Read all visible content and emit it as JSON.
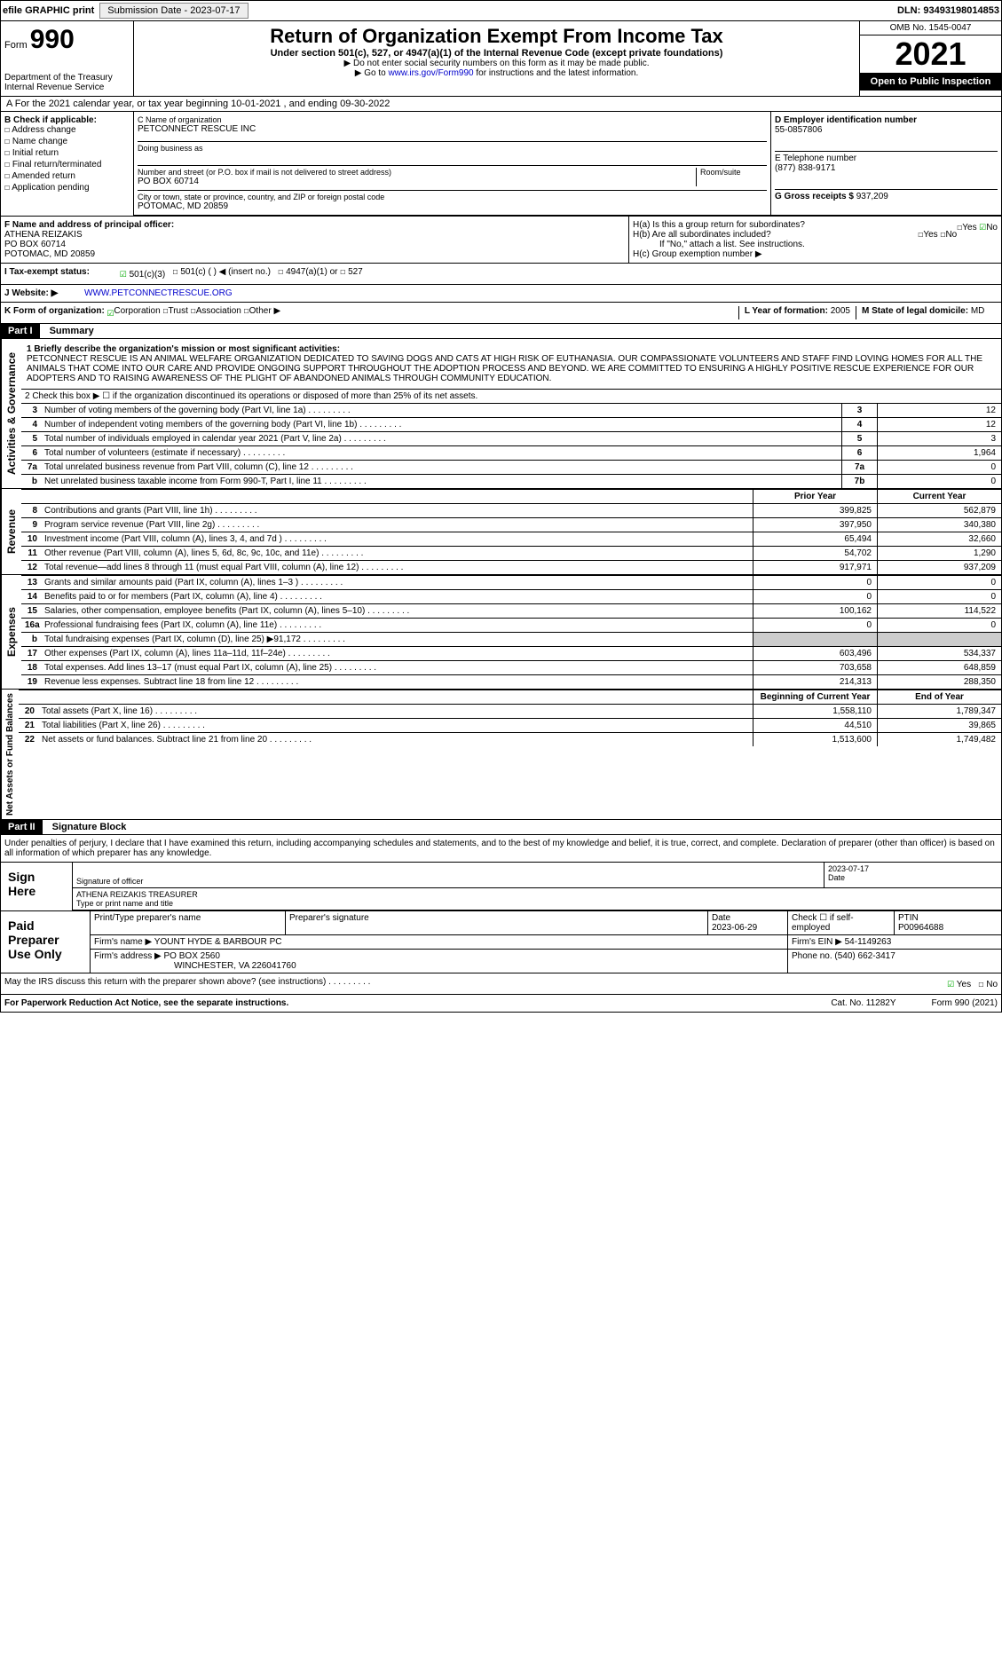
{
  "topbar": {
    "efile": "efile GRAPHIC print",
    "submission": "Submission Date - 2023-07-17",
    "dln": "DLN: 93493198014853"
  },
  "header": {
    "form_prefix": "Form",
    "form_num": "990",
    "dept": "Department of the Treasury Internal Revenue Service",
    "title": "Return of Organization Exempt From Income Tax",
    "sub": "Under section 501(c), 527, or 4947(a)(1) of the Internal Revenue Code (except private foundations)",
    "note1": "▶ Do not enter social security numbers on this form as it may be made public.",
    "note2": "▶ Go to ",
    "note2_link": "www.irs.gov/Form990",
    "note2_suffix": " for instructions and the latest information.",
    "omb": "OMB No. 1545-0047",
    "year": "2021",
    "inspect": "Open to Public Inspection"
  },
  "row_a": "A For the 2021 calendar year, or tax year beginning 10-01-2021 , and ending 09-30-2022",
  "box_b": {
    "title": "B Check if applicable:",
    "items": [
      "Address change",
      "Name change",
      "Initial return",
      "Final return/terminated",
      "Amended return",
      "Application pending"
    ]
  },
  "box_c": {
    "label_name": "C Name of organization",
    "name": "PETCONNECT RESCUE INC",
    "dba_label": "Doing business as",
    "street_label": "Number and street (or P.O. box if mail is not delivered to street address)",
    "room_label": "Room/suite",
    "street": "PO BOX 60714",
    "city_label": "City or town, state or province, country, and ZIP or foreign postal code",
    "city": "POTOMAC, MD  20859"
  },
  "box_d": {
    "label": "D Employer identification number",
    "ein": "55-0857806",
    "e_label": "E Telephone number",
    "phone": "(877) 838-9171",
    "g_label": "G Gross receipts $",
    "gross": "937,209"
  },
  "box_f": {
    "label": "F Name and address of principal officer:",
    "name": "ATHENA REIZAKIS",
    "addr1": "PO BOX 60714",
    "addr2": "POTOMAC, MD  20859"
  },
  "box_h": {
    "a": "H(a) Is this a group return for subordinates?",
    "b": "H(b) Are all subordinates included?",
    "note": "If \"No,\" attach a list. See instructions.",
    "c": "H(c) Group exemption number ▶"
  },
  "row_i": {
    "label": "I Tax-exempt status:",
    "opts": [
      "501(c)(3)",
      "501(c) (  ) ◀ (insert no.)",
      "4947(a)(1) or",
      "527"
    ]
  },
  "row_j": {
    "label": "J Website: ▶",
    "url": "WWW.PETCONNECTRESCUE.ORG"
  },
  "row_k": {
    "label": "K Form of organization:",
    "opts": [
      "Corporation",
      "Trust",
      "Association",
      "Other ▶"
    ],
    "l_label": "L Year of formation:",
    "l_val": "2005",
    "m_label": "M State of legal domicile:",
    "m_val": "MD"
  },
  "part1": {
    "header": "Part I",
    "title": "Summary",
    "side1": "Activities & Governance",
    "side2": "Revenue",
    "side3": "Expenses",
    "side4": "Net Assets or Fund Balances",
    "mission_label": "1  Briefly describe the organization's mission or most significant activities:",
    "mission": "PETCONNECT RESCUE IS AN ANIMAL WELFARE ORGANIZATION DEDICATED TO SAVING DOGS AND CATS AT HIGH RISK OF EUTHANASIA. OUR COMPASSIONATE VOLUNTEERS AND STAFF FIND LOVING HOMES FOR ALL THE ANIMALS THAT COME INTO OUR CARE AND PROVIDE ONGOING SUPPORT THROUGHOUT THE ADOPTION PROCESS AND BEYOND. WE ARE COMMITTED TO ENSURING A HIGHLY POSITIVE RESCUE EXPERIENCE FOR OUR ADOPTERS AND TO RAISING AWARENESS OF THE PLIGHT OF ABANDONED ANIMALS THROUGH COMMUNITY EDUCATION.",
    "line2": "2  Check this box ▶ ☐ if the organization discontinued its operations or disposed of more than 25% of its net assets.",
    "lines_gov": [
      {
        "n": "3",
        "t": "Number of voting members of the governing body (Part VI, line 1a)",
        "box": "3",
        "v": "12"
      },
      {
        "n": "4",
        "t": "Number of independent voting members of the governing body (Part VI, line 1b)",
        "box": "4",
        "v": "12"
      },
      {
        "n": "5",
        "t": "Total number of individuals employed in calendar year 2021 (Part V, line 2a)",
        "box": "5",
        "v": "3"
      },
      {
        "n": "6",
        "t": "Total number of volunteers (estimate if necessary)",
        "box": "6",
        "v": "1,964"
      },
      {
        "n": "7a",
        "t": "Total unrelated business revenue from Part VIII, column (C), line 12",
        "box": "7a",
        "v": "0"
      },
      {
        "n": "b",
        "t": "Net unrelated business taxable income from Form 990-T, Part I, line 11",
        "box": "7b",
        "v": "0"
      }
    ],
    "col_prior": "Prior Year",
    "col_current": "Current Year",
    "lines_rev": [
      {
        "n": "8",
        "t": "Contributions and grants (Part VIII, line 1h)",
        "p": "399,825",
        "c": "562,879"
      },
      {
        "n": "9",
        "t": "Program service revenue (Part VIII, line 2g)",
        "p": "397,950",
        "c": "340,380"
      },
      {
        "n": "10",
        "t": "Investment income (Part VIII, column (A), lines 3, 4, and 7d )",
        "p": "65,494",
        "c": "32,660"
      },
      {
        "n": "11",
        "t": "Other revenue (Part VIII, column (A), lines 5, 6d, 8c, 9c, 10c, and 11e)",
        "p": "54,702",
        "c": "1,290"
      },
      {
        "n": "12",
        "t": "Total revenue—add lines 8 through 11 (must equal Part VIII, column (A), line 12)",
        "p": "917,971",
        "c": "937,209"
      }
    ],
    "lines_exp": [
      {
        "n": "13",
        "t": "Grants and similar amounts paid (Part IX, column (A), lines 1–3 )",
        "p": "0",
        "c": "0"
      },
      {
        "n": "14",
        "t": "Benefits paid to or for members (Part IX, column (A), line 4)",
        "p": "0",
        "c": "0"
      },
      {
        "n": "15",
        "t": "Salaries, other compensation, employee benefits (Part IX, column (A), lines 5–10)",
        "p": "100,162",
        "c": "114,522"
      },
      {
        "n": "16a",
        "t": "Professional fundraising fees (Part IX, column (A), line 11e)",
        "p": "0",
        "c": "0"
      },
      {
        "n": "b",
        "t": "Total fundraising expenses (Part IX, column (D), line 25) ▶91,172",
        "p": "",
        "c": "",
        "shaded": true
      },
      {
        "n": "17",
        "t": "Other expenses (Part IX, column (A), lines 11a–11d, 11f–24e)",
        "p": "603,496",
        "c": "534,337"
      },
      {
        "n": "18",
        "t": "Total expenses. Add lines 13–17 (must equal Part IX, column (A), line 25)",
        "p": "703,658",
        "c": "648,859"
      },
      {
        "n": "19",
        "t": "Revenue less expenses. Subtract line 18 from line 12",
        "p": "214,313",
        "c": "288,350"
      }
    ],
    "col_begin": "Beginning of Current Year",
    "col_end": "End of Year",
    "lines_net": [
      {
        "n": "20",
        "t": "Total assets (Part X, line 16)",
        "p": "1,558,110",
        "c": "1,789,347"
      },
      {
        "n": "21",
        "t": "Total liabilities (Part X, line 26)",
        "p": "44,510",
        "c": "39,865"
      },
      {
        "n": "22",
        "t": "Net assets or fund balances. Subtract line 21 from line 20",
        "p": "1,513,600",
        "c": "1,749,482"
      }
    ]
  },
  "part2": {
    "header": "Part II",
    "title": "Signature Block",
    "perjury": "Under penalties of perjury, I declare that I have examined this return, including accompanying schedules and statements, and to the best of my knowledge and belief, it is true, correct, and complete. Declaration of preparer (other than officer) is based on all information of which preparer has any knowledge.",
    "sign_here": "Sign Here",
    "sig_officer": "Signature of officer",
    "sig_date_label": "Date",
    "sig_date": "2023-07-17",
    "sig_name": "ATHENA REIZAKIS  TREASURER",
    "sig_name_label": "Type or print name and title",
    "paid": "Paid Preparer Use Only",
    "prep_name_label": "Print/Type preparer's name",
    "prep_sig_label": "Preparer's signature",
    "prep_date_label": "Date",
    "prep_date": "2023-06-29",
    "prep_check": "Check ☐ if self-employed",
    "ptin_label": "PTIN",
    "ptin": "P00964688",
    "firm_label": "Firm's name ▶",
    "firm": "YOUNT HYDE & BARBOUR PC",
    "firm_ein_label": "Firm's EIN ▶",
    "firm_ein": "54-1149263",
    "firm_addr_label": "Firm's address ▶",
    "firm_addr": "PO BOX 2560",
    "firm_city": "WINCHESTER, VA  226041760",
    "firm_phone_label": "Phone no.",
    "firm_phone": "(540) 662-3417"
  },
  "footer": {
    "discuss": "May the IRS discuss this return with the preparer shown above? (see instructions)",
    "pra": "For Paperwork Reduction Act Notice, see the separate instructions.",
    "cat": "Cat. No. 11282Y",
    "form": "Form 990 (2021)"
  }
}
